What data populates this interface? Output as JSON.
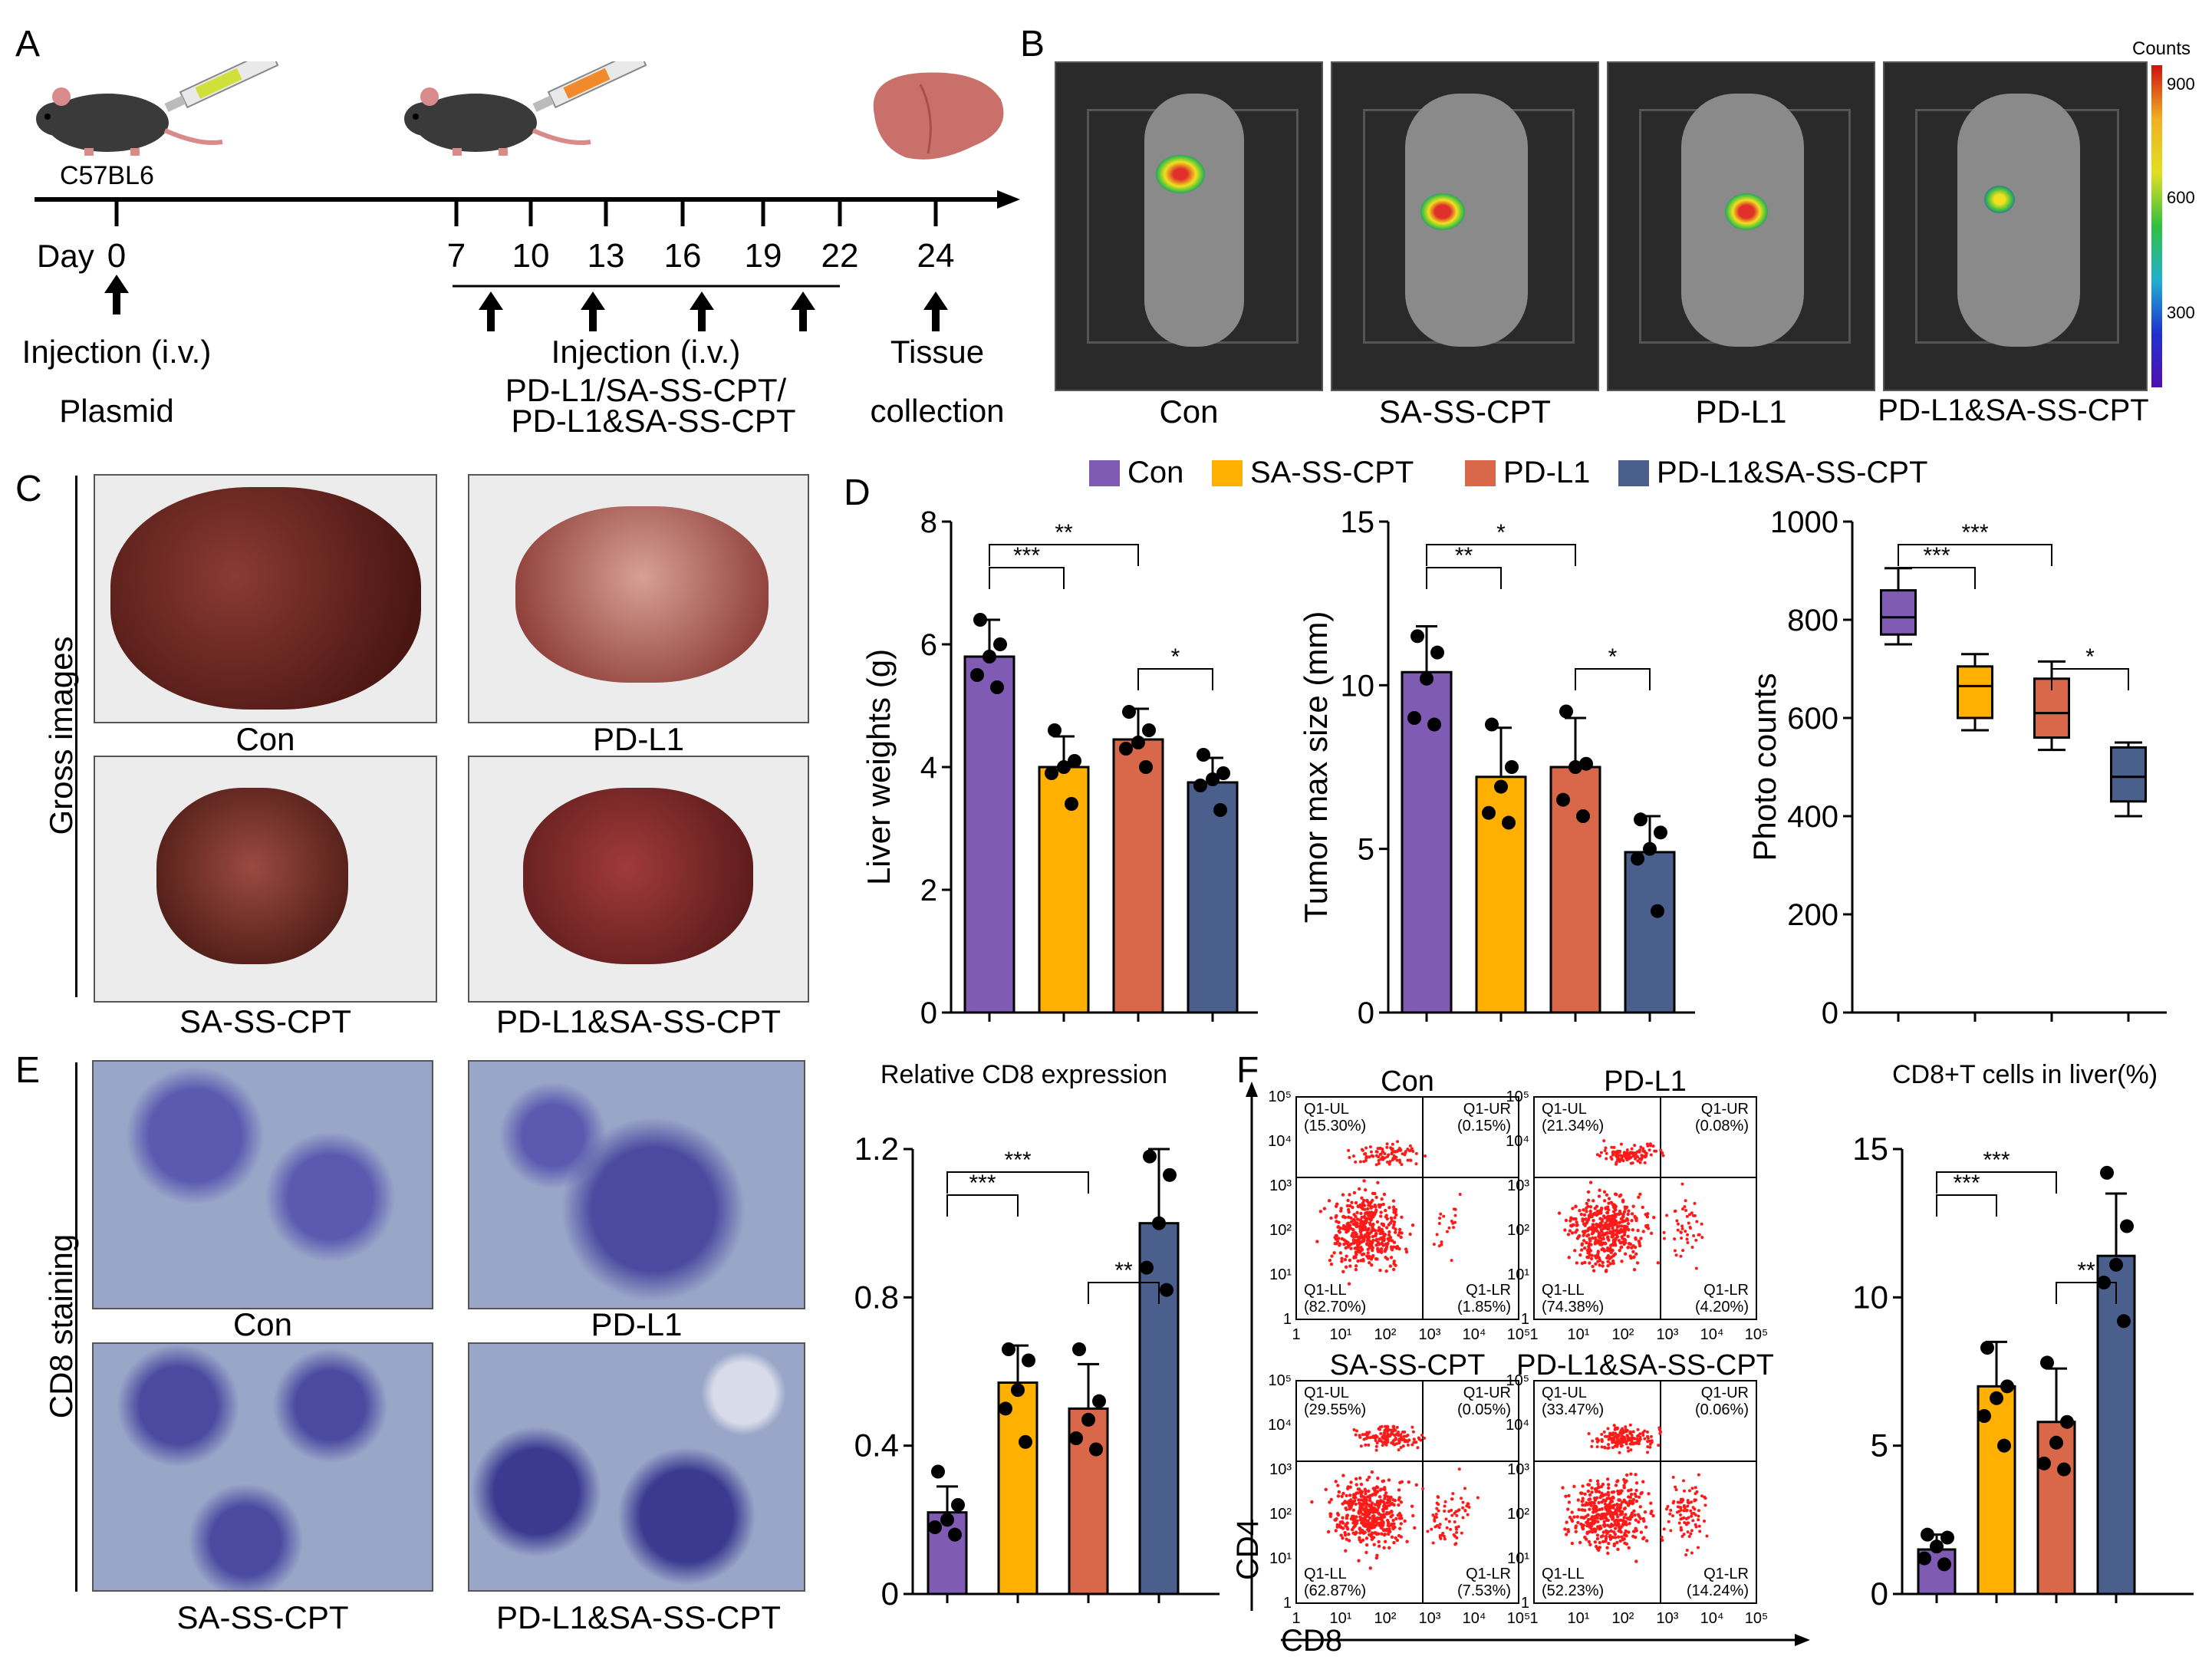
{
  "panels": {
    "A": "A",
    "B": "B",
    "C": "C",
    "D": "D",
    "E": "E",
    "F": "F"
  },
  "colors": {
    "con": "#7f5bb3",
    "sa": "#ffb000",
    "pdl1": "#d9674a",
    "combo": "#4a5f8c"
  },
  "panelA": {
    "strain": "C57BL6",
    "day_label": "Day",
    "ticks": [
      "0",
      "7",
      "10",
      "13",
      "16",
      "19",
      "22",
      "24"
    ],
    "injection1": "Injection (i.v.)",
    "plasmid": "Plasmid",
    "injection2": "Injection (i.v.)",
    "drugs_line1": "PD-L1/SA-SS-CPT/",
    "drugs_line2": "PD-L1&SA-SS-CPT",
    "tissue_line1": "Tissue",
    "tissue_line2": "collection"
  },
  "panelB": {
    "labels": [
      "Con",
      "SA-SS-CPT",
      "PD-L1",
      "PD-L1&SA-SS-CPT"
    ],
    "colorbar_title": "Counts",
    "colorbar_ticks": [
      "900",
      "600",
      "300"
    ]
  },
  "panelC": {
    "ylabel": "Gross images",
    "labels": [
      "Con",
      "PD-L1",
      "SA-SS-CPT",
      "PD-L1&SA-SS-CPT"
    ]
  },
  "legend": [
    "Con",
    "SA-SS-CPT",
    "PD-L1",
    "PD-L1&SA-SS-CPT"
  ],
  "panelE": {
    "ylabel": "CD8 staining",
    "labels": [
      "Con",
      "PD-L1",
      "SA-SS-CPT",
      "PD-L1&SA-SS-CPT"
    ]
  },
  "panelF": {
    "titles": [
      "Con",
      "PD-L1",
      "SA-SS-CPT",
      "PD-L1&SA-SS-CPT"
    ],
    "xaxis": "CD8",
    "yaxis": "CD4",
    "quadrants": [
      {
        "ul": "Q1-UL",
        "ul_v": "(15.30%)",
        "ur": "Q1-UR",
        "ur_v": "(0.15%)",
        "ll": "Q1-LL",
        "ll_v": "(82.70%)",
        "lr": "Q1-LR",
        "lr_v": "(1.85%)"
      },
      {
        "ul": "Q1-UL",
        "ul_v": "(21.34%)",
        "ur": "Q1-UR",
        "ur_v": "(0.08%)",
        "ll": "Q1-LL",
        "ll_v": "(74.38%)",
        "lr": "Q1-LR",
        "lr_v": "(4.20%)"
      },
      {
        "ul": "Q1-UL",
        "ul_v": "(29.55%)",
        "ur": "Q1-UR",
        "ur_v": "(0.05%)",
        "ll": "Q1-LL",
        "ll_v": "(62.87%)",
        "lr": "Q1-LR",
        "lr_v": "(7.53%)"
      },
      {
        "ul": "Q1-UL",
        "ul_v": "(33.47%)",
        "ur": "Q1-UR",
        "ur_v": "(0.06%)",
        "ll": "Q1-LL",
        "ll_v": "(52.23%)",
        "lr": "Q1-LR",
        "lr_v": "(14.24%)"
      }
    ],
    "ticks": [
      "1",
      "10¹",
      "10²",
      "10³",
      "10⁴",
      "10⁵"
    ]
  },
  "chart_data": [
    {
      "id": "liver",
      "type": "bar",
      "ylabel": "Liver weights (g)",
      "ylim": [
        0,
        8
      ],
      "yticks": [
        "0",
        "2",
        "4",
        "6",
        "8"
      ],
      "categories": [
        "Con",
        "SA-SS-CPT",
        "PD-L1",
        "PD-L1&SA-SS-CPT"
      ],
      "values": [
        5.8,
        4.0,
        4.45,
        3.75
      ],
      "errors": [
        0.6,
        0.5,
        0.5,
        0.4
      ],
      "points": [
        [
          6.4,
          6.0,
          5.8,
          5.5,
          5.3
        ],
        [
          4.6,
          4.1,
          4.0,
          3.9,
          3.4
        ],
        [
          4.9,
          4.6,
          4.4,
          4.3,
          4.0
        ],
        [
          4.2,
          3.9,
          3.8,
          3.7,
          3.3
        ]
      ],
      "sig": [
        {
          "a": 0,
          "b": 1,
          "label": "***",
          "level": 0
        },
        {
          "a": 0,
          "b": 2,
          "label": "**",
          "level": 1
        },
        {
          "a": 2,
          "b": 3,
          "label": "*",
          "level": 2
        }
      ]
    },
    {
      "id": "tumor",
      "type": "bar",
      "ylabel": "Tumor max size (mm)",
      "ylim": [
        0,
        15
      ],
      "yticks": [
        "0",
        "5",
        "10",
        "15"
      ],
      "categories": [
        "Con",
        "SA-SS-CPT",
        "PD-L1",
        "PD-L1&SA-SS-CPT"
      ],
      "values": [
        10.4,
        7.2,
        7.5,
        4.9
      ],
      "errors": [
        1.4,
        1.5,
        1.5,
        1.1
      ],
      "points": [
        [
          11.5,
          11.0,
          10.2,
          9.0,
          8.8
        ],
        [
          8.8,
          7.5,
          6.9,
          6.1,
          5.8
        ],
        [
          9.2,
          7.6,
          7.5,
          6.5,
          6.0
        ],
        [
          5.9,
          5.5,
          5.0,
          4.7,
          3.1
        ]
      ],
      "sig": [
        {
          "a": 0,
          "b": 1,
          "label": "**",
          "level": 0
        },
        {
          "a": 0,
          "b": 2,
          "label": "*",
          "level": 1
        },
        {
          "a": 2,
          "b": 3,
          "label": "*",
          "level": 2
        }
      ]
    },
    {
      "id": "photo",
      "type": "box",
      "ylabel": "Photo counts",
      "ylim": [
        0,
        1000
      ],
      "yticks": [
        "0",
        "200",
        "400",
        "600",
        "800",
        "1000"
      ],
      "categories": [
        "Con",
        "SA-SS-CPT",
        "PD-L1",
        "PD-L1&SA-SS-CPT"
      ],
      "boxes": [
        {
          "min": 750,
          "q1": 770,
          "med": 805,
          "q3": 860,
          "max": 905
        },
        {
          "min": 575,
          "q1": 600,
          "med": 665,
          "q3": 705,
          "max": 730
        },
        {
          "min": 535,
          "q1": 560,
          "med": 610,
          "q3": 680,
          "max": 715
        },
        {
          "min": 400,
          "q1": 430,
          "med": 480,
          "q3": 540,
          "max": 550
        }
      ],
      "sig": [
        {
          "a": 0,
          "b": 1,
          "label": "***",
          "level": 0
        },
        {
          "a": 0,
          "b": 2,
          "label": "***",
          "level": 1
        },
        {
          "a": 2,
          "b": 3,
          "label": "*",
          "level": 2
        }
      ]
    },
    {
      "id": "cd8rel",
      "type": "bar",
      "title": "Relative CD8 expression",
      "ylim": [
        0,
        1.2
      ],
      "yticks": [
        "0",
        "0.4",
        "0.8",
        "1.2"
      ],
      "categories": [
        "Con",
        "SA-SS-CPT",
        "PD-L1",
        "PD-L1&SA-SS-CPT"
      ],
      "values": [
        0.22,
        0.57,
        0.5,
        1.0
      ],
      "errors": [
        0.07,
        0.1,
        0.12,
        0.2
      ],
      "points": [
        [
          0.33,
          0.24,
          0.2,
          0.18,
          0.16
        ],
        [
          0.66,
          0.63,
          0.55,
          0.5,
          0.41
        ],
        [
          0.66,
          0.52,
          0.47,
          0.42,
          0.39
        ],
        [
          1.18,
          1.13,
          1.0,
          0.88,
          0.82
        ]
      ],
      "sig": [
        {
          "a": 0,
          "b": 1,
          "label": "***",
          "level": 0
        },
        {
          "a": 0,
          "b": 2,
          "label": "***",
          "level": 1
        },
        {
          "a": 2,
          "b": 3,
          "label": "**",
          "level": 2
        }
      ]
    },
    {
      "id": "cd8t",
      "type": "bar",
      "title": "CD8+T cells in liver(%)",
      "ylim": [
        0,
        15
      ],
      "yticks": [
        "0",
        "5",
        "10",
        "15"
      ],
      "categories": [
        "Con",
        "SA-SS-CPT",
        "PD-L1",
        "PD-L1&SA-SS-CPT"
      ],
      "values": [
        1.5,
        7.0,
        5.8,
        11.4
      ],
      "errors": [
        0.5,
        1.5,
        1.8,
        2.1
      ],
      "points": [
        [
          2.0,
          1.9,
          1.6,
          1.2,
          1.0
        ],
        [
          8.3,
          7.0,
          6.6,
          6.0,
          5.0
        ],
        [
          7.8,
          5.8,
          5.1,
          4.4,
          4.2
        ],
        [
          14.2,
          12.4,
          11.1,
          10.5,
          9.2
        ]
      ],
      "sig": [
        {
          "a": 0,
          "b": 1,
          "label": "***",
          "level": 0
        },
        {
          "a": 0,
          "b": 2,
          "label": "***",
          "level": 1
        },
        {
          "a": 2,
          "b": 3,
          "label": "**",
          "level": 2
        }
      ]
    }
  ]
}
